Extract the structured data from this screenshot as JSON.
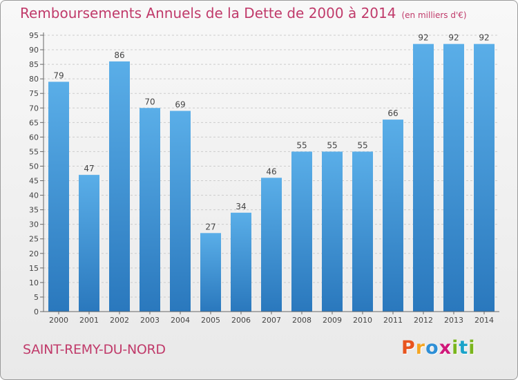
{
  "chart_data": {
    "type": "bar",
    "title": "Remboursements Annuels de la Dette de 2000 à 2014",
    "unit": "(en milliers d'€)",
    "categories": [
      "2000",
      "2001",
      "2002",
      "2003",
      "2004",
      "2005",
      "2006",
      "2007",
      "2008",
      "2009",
      "2010",
      "2011",
      "2012",
      "2013",
      "2014"
    ],
    "values": [
      79,
      47,
      86,
      70,
      69,
      27,
      34,
      46,
      55,
      55,
      55,
      66,
      92,
      92,
      92
    ],
    "ylim": [
      0,
      95
    ],
    "yticks": [
      0,
      5,
      10,
      15,
      20,
      25,
      30,
      35,
      40,
      45,
      50,
      55,
      60,
      65,
      70,
      75,
      80,
      85,
      90,
      95
    ],
    "grid": true,
    "legend": "none",
    "colors": {
      "bar_light": "#5aaee8",
      "bar_dark": "#2a78bd",
      "grid": "#cccccc",
      "text": "#444444",
      "title": "#c03a6a"
    }
  },
  "footer": {
    "commune": "SAINT-REMY-DU-NORD",
    "brand": [
      "P",
      "r",
      "o",
      "x",
      "i",
      "t",
      "i"
    ],
    "brand_colors": [
      "#e8541e",
      "#f5a623",
      "#2e8fd6",
      "#d0197a",
      "#7ab51d",
      "#1aa3c9",
      "#7ab51d"
    ]
  }
}
